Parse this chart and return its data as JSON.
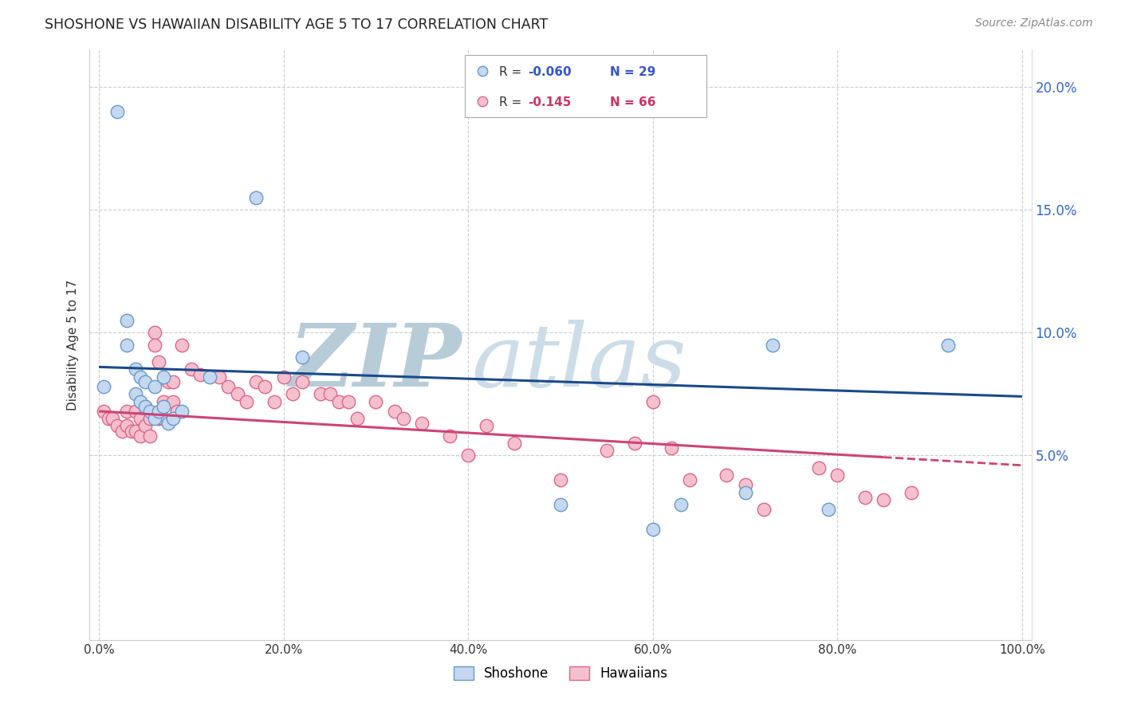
{
  "title": "SHOSHONE VS HAWAIIAN DISABILITY AGE 5 TO 17 CORRELATION CHART",
  "source": "Source: ZipAtlas.com",
  "ylabel": "Disability Age 5 to 17",
  "xlim": [
    -0.01,
    1.01
  ],
  "ylim": [
    -0.025,
    0.215
  ],
  "xticks": [
    0.0,
    0.2,
    0.4,
    0.6,
    0.8,
    1.0
  ],
  "yticks": [
    0.05,
    0.1,
    0.15,
    0.2
  ],
  "right_yticks": [
    0.05,
    0.1,
    0.15,
    0.2
  ],
  "shoshone_R": -0.06,
  "shoshone_N": 29,
  "hawaiian_R": -0.145,
  "hawaiian_N": 66,
  "shoshone_color": "#c5d8f0",
  "shoshone_edge": "#6699cc",
  "hawaiian_color": "#f5c0ce",
  "hawaiian_edge": "#dd6688",
  "trend_blue": "#1a4a8a",
  "trend_pink": "#cc4477",
  "watermark_zip_color": "#b0c4d8",
  "watermark_atlas_color": "#c8dae8",
  "shoshone_x": [
    0.005,
    0.02,
    0.03,
    0.03,
    0.04,
    0.04,
    0.045,
    0.045,
    0.05,
    0.05,
    0.055,
    0.06,
    0.06,
    0.065,
    0.07,
    0.07,
    0.075,
    0.08,
    0.09,
    0.12,
    0.17,
    0.22,
    0.5,
    0.6,
    0.63,
    0.7,
    0.73,
    0.79,
    0.92
  ],
  "shoshone_y": [
    0.078,
    0.19,
    0.105,
    0.095,
    0.085,
    0.075,
    0.082,
    0.072,
    0.08,
    0.07,
    0.068,
    0.078,
    0.065,
    0.068,
    0.082,
    0.07,
    0.063,
    0.065,
    0.068,
    0.082,
    0.155,
    0.09,
    0.03,
    0.02,
    0.03,
    0.035,
    0.095,
    0.028,
    0.095
  ],
  "hawaiian_x": [
    0.005,
    0.01,
    0.015,
    0.02,
    0.025,
    0.03,
    0.03,
    0.035,
    0.04,
    0.04,
    0.045,
    0.045,
    0.05,
    0.05,
    0.055,
    0.055,
    0.06,
    0.06,
    0.065,
    0.065,
    0.07,
    0.07,
    0.075,
    0.08,
    0.08,
    0.085,
    0.09,
    0.1,
    0.11,
    0.13,
    0.14,
    0.15,
    0.16,
    0.17,
    0.18,
    0.19,
    0.2,
    0.21,
    0.22,
    0.24,
    0.25,
    0.26,
    0.27,
    0.28,
    0.3,
    0.32,
    0.33,
    0.35,
    0.38,
    0.4,
    0.42,
    0.45,
    0.5,
    0.55,
    0.58,
    0.6,
    0.62,
    0.64,
    0.68,
    0.7,
    0.72,
    0.78,
    0.8,
    0.83,
    0.85,
    0.88
  ],
  "hawaiian_y": [
    0.068,
    0.065,
    0.065,
    0.062,
    0.06,
    0.068,
    0.062,
    0.06,
    0.068,
    0.06,
    0.065,
    0.058,
    0.07,
    0.062,
    0.065,
    0.058,
    0.1,
    0.095,
    0.088,
    0.065,
    0.072,
    0.065,
    0.08,
    0.08,
    0.072,
    0.068,
    0.095,
    0.085,
    0.083,
    0.082,
    0.078,
    0.075,
    0.072,
    0.08,
    0.078,
    0.072,
    0.082,
    0.075,
    0.08,
    0.075,
    0.075,
    0.072,
    0.072,
    0.065,
    0.072,
    0.068,
    0.065,
    0.063,
    0.058,
    0.05,
    0.062,
    0.055,
    0.04,
    0.052,
    0.055,
    0.072,
    0.053,
    0.04,
    0.042,
    0.038,
    0.028,
    0.045,
    0.042,
    0.033,
    0.032,
    0.035
  ],
  "shoshone_trend_x": [
    0.0,
    1.0
  ],
  "shoshone_trend_y_start": 0.086,
  "shoshone_trend_y_end": 0.074,
  "hawaiian_trend_x_solid_end": 0.85,
  "hawaiian_trend_y_start": 0.068,
  "hawaiian_trend_y_end": 0.046
}
